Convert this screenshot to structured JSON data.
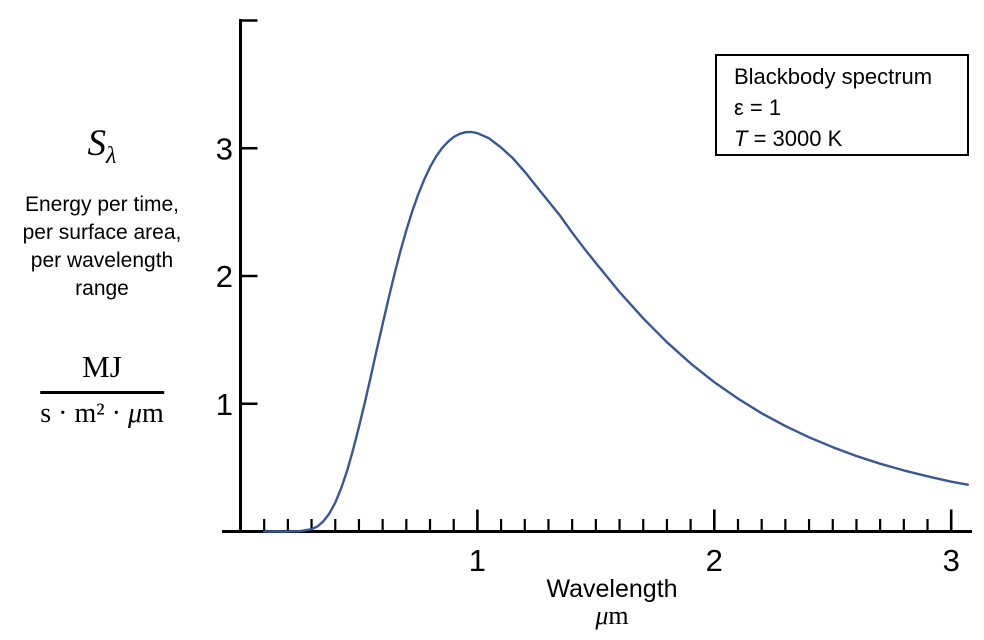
{
  "y_axis": {
    "symbol": "S",
    "symbol_subscript": "λ",
    "description_lines": [
      "Energy per time,",
      "per surface area,",
      "per wavelength",
      "range"
    ],
    "units": {
      "numerator": "MJ",
      "denominator_prefix": "s · m² · ",
      "denominator_mu": "μ",
      "denominator_suffix": "m"
    }
  },
  "x_axis": {
    "label": "Wavelength",
    "unit_mu": "μ",
    "unit_suffix": "m"
  },
  "legend": {
    "line1": "Blackbody spectrum",
    "line2": "ε = 1",
    "line3_symbol": "T",
    "line3_rest": " = 3000 K"
  },
  "chart_data": {
    "type": "line",
    "title": "Blackbody spectrum",
    "emissivity": "ε = 1",
    "temperature": "T = 3000 K",
    "xlabel": "Wavelength (μm)",
    "ylabel": "Sλ — Energy per time, per surface area, per wavelength range (MJ / (s·m²·μm))",
    "xlim": [
      0,
      3.09
    ],
    "ylim": [
      0,
      4.0
    ],
    "grid": false,
    "legend_position": "top-right",
    "x_major_ticks": [
      1,
      2,
      3
    ],
    "x_minor_tick_step": 0.1,
    "y_major_ticks": [
      1,
      2,
      3
    ],
    "y_axis_top_tick": 4,
    "line_color": "#3a5795",
    "peak": {
      "wavelength_um": 0.966,
      "value": 3.13
    },
    "series": [
      {
        "name": "Blackbody spectral emissive power, ε = 1, T = 3000 K",
        "x": [
          0.1,
          0.15,
          0.2,
          0.25,
          0.3,
          0.325,
          0.35,
          0.375,
          0.4,
          0.425,
          0.45,
          0.475,
          0.5,
          0.525,
          0.55,
          0.575,
          0.6,
          0.625,
          0.65,
          0.675,
          0.7,
          0.725,
          0.75,
          0.775,
          0.8,
          0.825,
          0.85,
          0.875,
          0.9,
          0.925,
          0.95,
          0.975,
          1.0,
          1.05,
          1.1,
          1.15,
          1.2,
          1.25,
          1.3,
          1.35,
          1.4,
          1.45,
          1.5,
          1.6,
          1.7,
          1.8,
          1.9,
          2.0,
          2.1,
          2.2,
          2.3,
          2.4,
          2.5,
          2.6,
          2.7,
          2.8,
          2.9,
          3.0,
          3.07
        ],
        "y": [
          0,
          0,
          0,
          0.002,
          0.018,
          0.04,
          0.08,
          0.14,
          0.226,
          0.339,
          0.475,
          0.638,
          0.817,
          1.012,
          1.213,
          1.421,
          1.623,
          1.825,
          2.016,
          2.194,
          2.357,
          2.507,
          2.639,
          2.752,
          2.852,
          2.933,
          3.0,
          3.05,
          3.088,
          3.112,
          3.126,
          3.127,
          3.118,
          3.077,
          3.006,
          2.921,
          2.816,
          2.7,
          2.584,
          2.47,
          2.339,
          2.218,
          2.101,
          1.875,
          1.669,
          1.482,
          1.316,
          1.169,
          1.04,
          0.925,
          0.825,
          0.737,
          0.66,
          0.591,
          0.531,
          0.478,
          0.432,
          0.39,
          0.366
        ]
      }
    ]
  }
}
